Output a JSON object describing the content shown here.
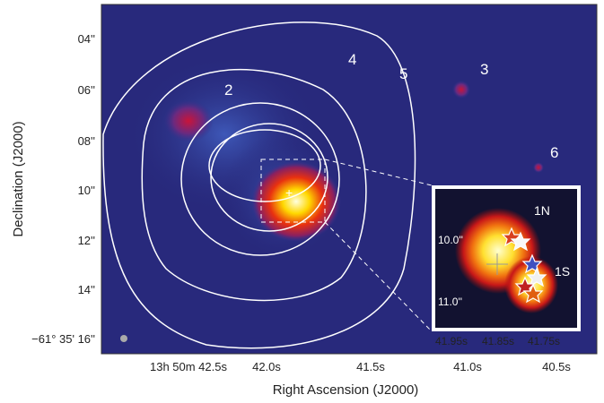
{
  "figure": {
    "x_axis_label": "Right Ascension (J2000)",
    "y_axis_label": "Declination (J2000)",
    "x_tick_labels": [
      "13h 50m 42.5s",
      "42.0s",
      "41.5s",
      "41.0s",
      "40.5s"
    ],
    "y_tick_labels": [
      "04''",
      "06''",
      "08''",
      "10''",
      "12''",
      "14''",
      "−61° 35' 16''"
    ],
    "contour_labels": [
      "2",
      "3",
      "4",
      "5",
      "6"
    ],
    "inset": {
      "labels": [
        "1N",
        "1S"
      ],
      "y_tick_labels": [
        "10.0''",
        "11.0''"
      ],
      "x_tick_labels": [
        "41.95s",
        "41.85s",
        "41.75s"
      ]
    }
  }
}
